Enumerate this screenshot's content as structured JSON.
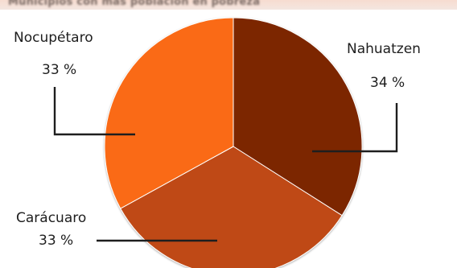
{
  "header": {
    "banner": "Municipios con más población en pobreza"
  },
  "chart_data": {
    "type": "pie",
    "title": "",
    "slices": [
      {
        "label": "Nahuatzen",
        "value": 34,
        "display": "34 %",
        "color": "#7c2500"
      },
      {
        "label": "Carácuaro",
        "value": 33,
        "display": "33 %",
        "color": "#bf4a14"
      },
      {
        "label": "Nocupétaro",
        "value": 33,
        "display": "33 %",
        "color": "#fa6b12"
      }
    ],
    "legend": "none",
    "unit": "%"
  }
}
